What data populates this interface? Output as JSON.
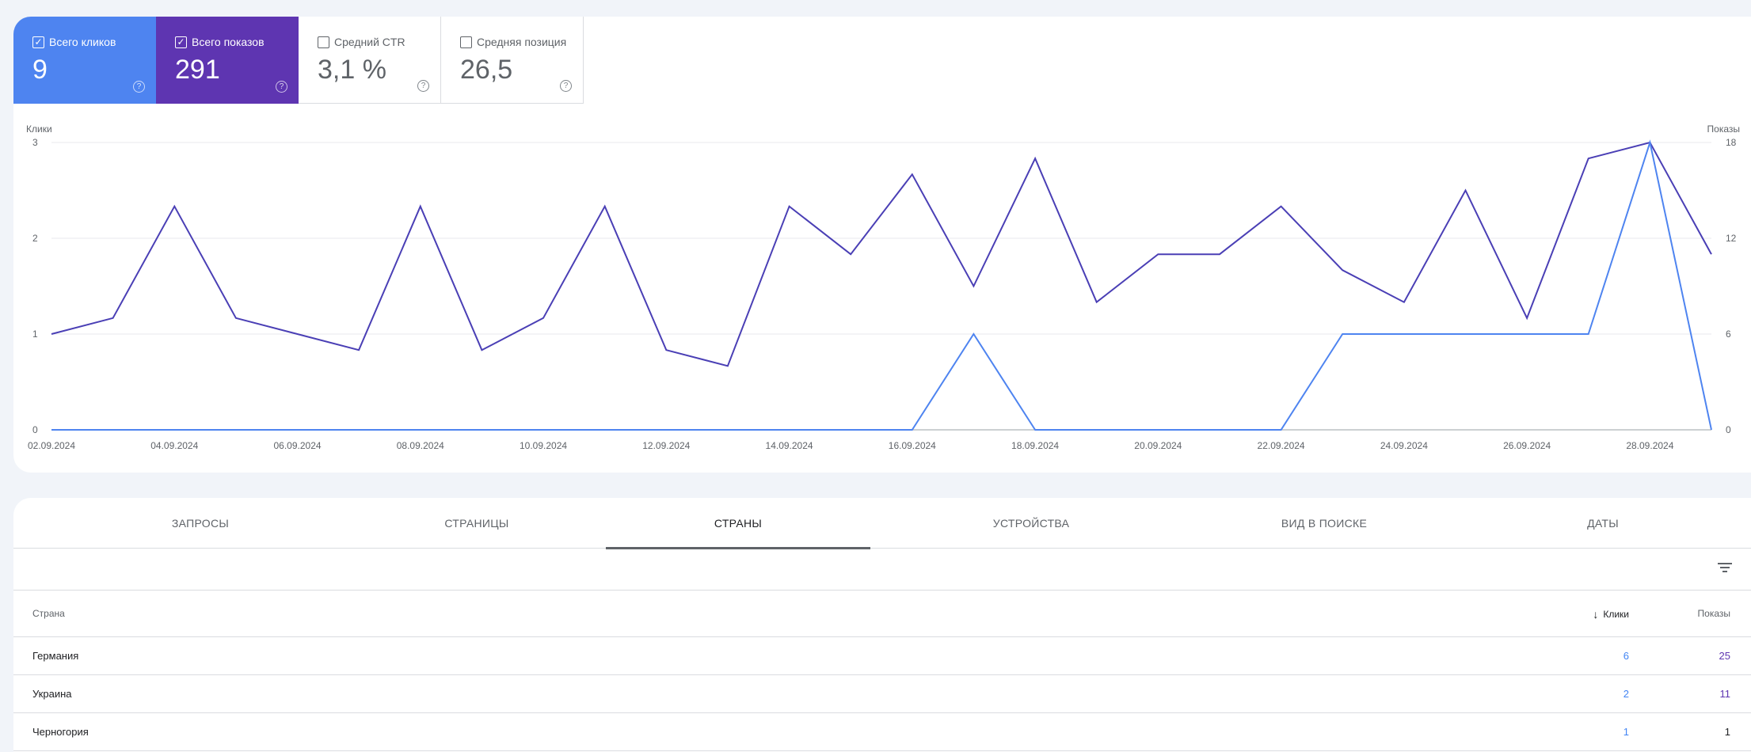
{
  "metrics": [
    {
      "label": "Всего кликов",
      "value": "9",
      "checked": true,
      "color": "#4e84f0"
    },
    {
      "label": "Всего показов",
      "value": "291",
      "checked": true,
      "color": "#5e35b1"
    },
    {
      "label": "Средний CTR",
      "value": "3,1 %",
      "checked": false
    },
    {
      "label": "Средняя позиция",
      "value": "26,5",
      "checked": false
    }
  ],
  "help_glyph": "?",
  "chart_data": {
    "type": "line",
    "y_left_label": "Клики",
    "y_right_label": "Показы",
    "y_left_ticks": [
      "0",
      "1",
      "2",
      "3"
    ],
    "y_right_ticks": [
      "0",
      "6",
      "12",
      "18"
    ],
    "y_left_range": [
      0,
      3
    ],
    "y_right_range": [
      0,
      18
    ],
    "x_tick_labels": [
      "02.09.2024",
      "04.09.2024",
      "06.09.2024",
      "08.09.2024",
      "10.09.2024",
      "12.09.2024",
      "14.09.2024",
      "16.09.2024",
      "18.09.2024",
      "20.09.2024",
      "22.09.2024",
      "24.09.2024",
      "26.09.2024",
      "28.09.2024"
    ],
    "x": [
      "02.09.2024",
      "03.09.2024",
      "04.09.2024",
      "05.09.2024",
      "06.09.2024",
      "07.09.2024",
      "08.09.2024",
      "09.09.2024",
      "10.09.2024",
      "11.09.2024",
      "12.09.2024",
      "13.09.2024",
      "14.09.2024",
      "15.09.2024",
      "16.09.2024",
      "17.09.2024",
      "18.09.2024",
      "19.09.2024",
      "20.09.2024",
      "21.09.2024",
      "22.09.2024",
      "23.09.2024",
      "24.09.2024",
      "25.09.2024",
      "26.09.2024",
      "27.09.2024",
      "28.09.2024",
      "29.09.2024"
    ],
    "series": [
      {
        "axis": "right",
        "color": "#4a3fb5",
        "values": [
          6,
          7,
          14,
          7,
          6,
          5,
          14,
          5,
          7,
          14,
          5,
          4,
          14,
          11,
          16,
          9,
          17,
          8,
          11,
          11,
          14,
          10,
          8,
          15,
          7,
          17,
          18,
          11
        ]
      },
      {
        "axis": "left",
        "color": "#4e84f0",
        "values": [
          0,
          0,
          0,
          0,
          0,
          0,
          0,
          0,
          0,
          0,
          0,
          0,
          0,
          0,
          0,
          1,
          0,
          0,
          0,
          0,
          0,
          1,
          1,
          1,
          1,
          1,
          3,
          0
        ]
      }
    ],
    "grid": true
  },
  "tabs": [
    {
      "label": "ЗАПРОСЫ",
      "selected": false
    },
    {
      "label": "СТРАНИЦЫ",
      "selected": false
    },
    {
      "label": "СТРАНЫ",
      "selected": true
    },
    {
      "label": "УСТРОЙСТВА",
      "selected": false
    },
    {
      "label": "ВИД В ПОИСКЕ",
      "selected": false
    },
    {
      "label": "ДАТЫ",
      "selected": false
    }
  ],
  "table": {
    "headers": {
      "country": "Страна",
      "clicks": "Клики",
      "impressions": "Показы",
      "sort_arrow": "↓"
    },
    "rows": [
      {
        "country": "Германия",
        "clicks": "6",
        "impressions": "25"
      },
      {
        "country": "Украина",
        "clicks": "2",
        "impressions": "11"
      },
      {
        "country": "Черногория",
        "clicks": "1",
        "impressions": "1"
      }
    ]
  }
}
